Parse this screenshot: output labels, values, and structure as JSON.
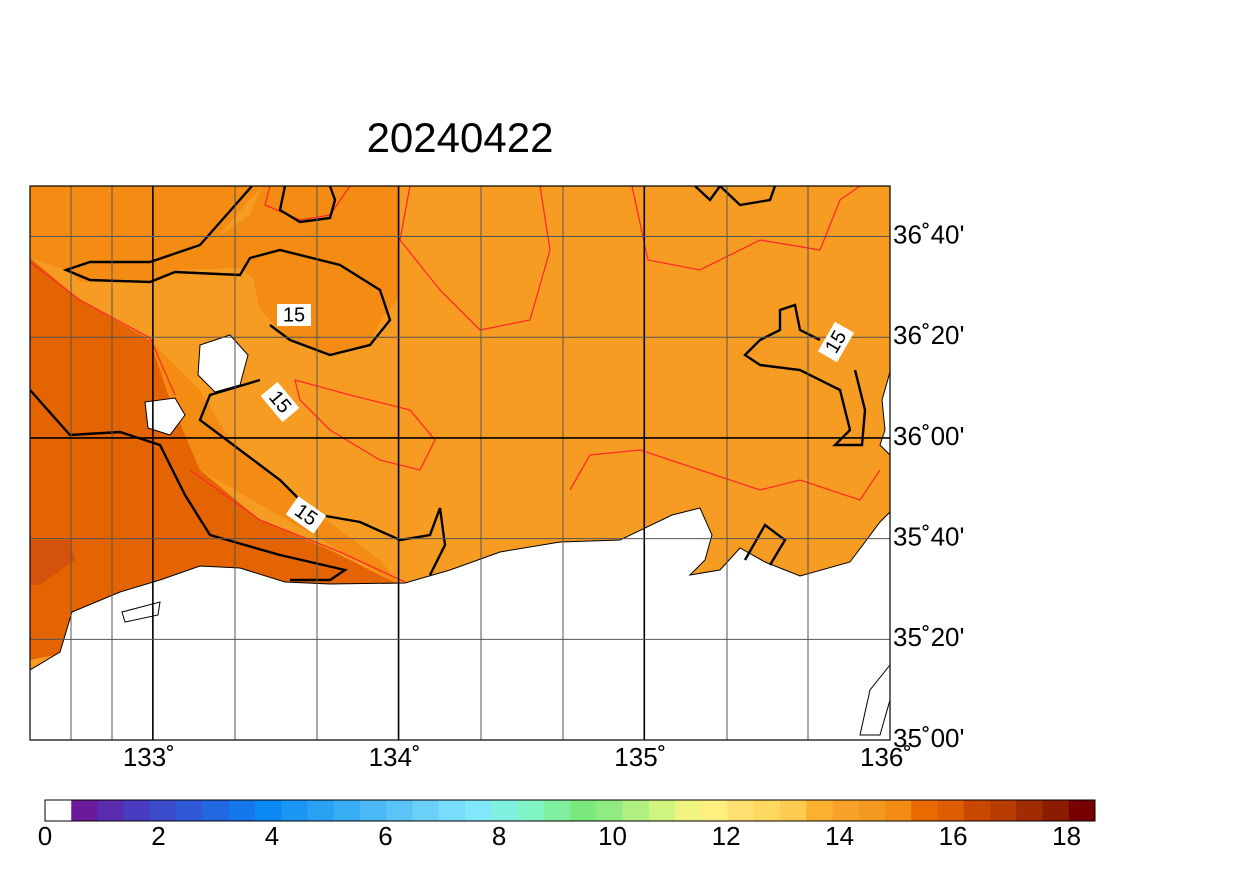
{
  "title": "20240422",
  "map": {
    "xlim": [
      132.5,
      136
    ],
    "ylim": [
      35,
      36.834
    ],
    "lon_ticks": [
      {
        "value": 133,
        "label": "133˚"
      },
      {
        "value": 134,
        "label": "134˚"
      },
      {
        "value": 135,
        "label": "135˚"
      },
      {
        "value": 136,
        "label": "136˚"
      }
    ],
    "lat_ticks": [
      {
        "value": 35,
        "label": "35˚00'"
      },
      {
        "value": 35.3333,
        "label": "35˚20'"
      },
      {
        "value": 35.6667,
        "label": "35˚40'"
      },
      {
        "value": 36,
        "label": "36˚00'"
      },
      {
        "value": 36.3333,
        "label": "36˚20'"
      },
      {
        "value": 36.6667,
        "label": "36˚40'"
      }
    ],
    "contour_labels": [
      "15",
      "15",
      "15",
      "15"
    ]
  },
  "colorbar": {
    "lim": [
      0,
      18.5
    ],
    "ticks": [
      0,
      2,
      4,
      6,
      8,
      10,
      12,
      14,
      16,
      18
    ],
    "colors": [
      "#ffffff",
      "#6a1a9a",
      "#5a2cb0",
      "#4a3cc0",
      "#3a4ccc",
      "#2e5ad8",
      "#2268e0",
      "#1478ec",
      "#0a88f4",
      "#1c96f4",
      "#2aa2f4",
      "#3aaef4",
      "#4ab8f4",
      "#5ac4f6",
      "#6ad0f8",
      "#78dcfa",
      "#80e8f8",
      "#80f0e0",
      "#80f4c4",
      "#80f0a0",
      "#7ce880",
      "#90ec80",
      "#b0f080",
      "#d0f480",
      "#f0f480",
      "#fff080",
      "#ffe070",
      "#ffd860",
      "#ffcc50",
      "#fbb030",
      "#f7a228",
      "#f49a20",
      "#f48c14",
      "#e86a00",
      "#e05c00",
      "#c84800",
      "#b83c00",
      "#a02c00",
      "#8c1c00",
      "#780000"
    ]
  }
}
